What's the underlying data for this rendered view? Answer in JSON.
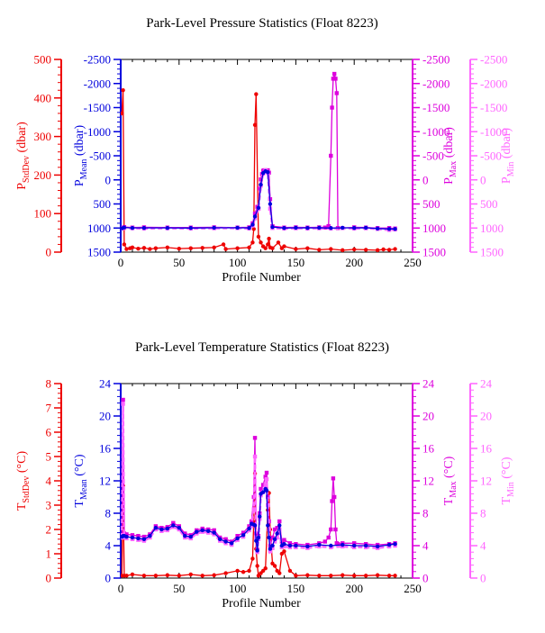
{
  "charts": [
    {
      "id": "pressure",
      "title": "Park-Level Pressure Statistics (Float 8223)",
      "xlabel": "Profile Number",
      "xticks": [
        "0",
        "50",
        "100",
        "150",
        "200",
        "250"
      ],
      "axes": [
        {
          "key": "sd",
          "label_main": "P",
          "label_sub": "StdDev",
          "label_unit": " (dbar)",
          "color": "#ee0000",
          "ticks": [
            "0",
            "100",
            "200",
            "300",
            "400",
            "500"
          ]
        },
        {
          "key": "mean",
          "label_main": "P",
          "label_sub": "Mean",
          "label_unit": " (dbar)",
          "color": "#0000dd",
          "ticks": [
            "1500",
            "1000",
            "500",
            "0",
            "-500",
            "-1000",
            "-1500",
            "-2000",
            "-2500"
          ]
        },
        {
          "key": "max",
          "label_main": "P",
          "label_sub": "Max",
          "label_unit": " (dbar)",
          "color": "#dd00dd",
          "ticks": [
            "1500",
            "1000",
            "500",
            "0",
            "-500",
            "-1000",
            "-1500",
            "-2000",
            "-2500"
          ]
        },
        {
          "key": "min",
          "label_main": "P",
          "label_sub": "Min",
          "label_unit": " (dbar)",
          "color": "#ff66ff",
          "ticks": [
            "1500",
            "1000",
            "500",
            "0",
            "-500",
            "-1000",
            "-1500",
            "-2000",
            "-2500"
          ]
        }
      ]
    },
    {
      "id": "temperature",
      "title": "Park-Level Temperature Statistics (Float 8223)",
      "xlabel": "Profile Number",
      "xticks": [
        "0",
        "50",
        "100",
        "150",
        "200",
        "250"
      ],
      "axes": [
        {
          "key": "sd",
          "label_main": "T",
          "label_sub": "StdDev",
          "label_unit": " (°C)",
          "color": "#ee0000",
          "ticks": [
            "0",
            "1",
            "2",
            "3",
            "4",
            "5",
            "6",
            "7",
            "8"
          ]
        },
        {
          "key": "mean",
          "label_main": "T",
          "label_sub": "Mean",
          "label_unit": " (°C)",
          "color": "#0000dd",
          "ticks": [
            "0",
            "4",
            "8",
            "12",
            "16",
            "20",
            "24"
          ]
        },
        {
          "key": "max",
          "label_main": "T",
          "label_sub": "Max",
          "label_unit": " (°C)",
          "color": "#dd00dd",
          "ticks": [
            "0",
            "4",
            "8",
            "12",
            "16",
            "20",
            "24"
          ]
        },
        {
          "key": "min",
          "label_main": "T",
          "label_sub": "Min",
          "label_unit": " (°C)",
          "color": "#ff66ff",
          "ticks": [
            "0",
            "4",
            "8",
            "12",
            "16",
            "20",
            "24"
          ]
        }
      ]
    }
  ],
  "chart_data": [
    {
      "type": "line",
      "title": "Park-Level Pressure Statistics (Float 8223)",
      "xlabel": "Profile Number",
      "xlim": [
        0,
        250
      ],
      "y_axes": {
        "sd": {
          "label": "PStdDev (dbar)",
          "ylim": [
            0,
            500
          ]
        },
        "mean": {
          "label": "PMean (dbar)",
          "ylim": [
            1500,
            -2500
          ]
        },
        "max": {
          "label": "PMax (dbar)",
          "ylim": [
            1500,
            -2500
          ]
        },
        "min": {
          "label": "PMin (dbar)",
          "ylim": [
            1500,
            -2500
          ]
        }
      },
      "series": [
        {
          "axis": "sd",
          "color": "#ee0000",
          "x": [
            1,
            2,
            3,
            5,
            8,
            10,
            15,
            20,
            25,
            30,
            40,
            50,
            60,
            70,
            80,
            88,
            90,
            100,
            110,
            113,
            114,
            115,
            116,
            118,
            120,
            122,
            124,
            126,
            127,
            128,
            130,
            135,
            138,
            140,
            150,
            160,
            170,
            180,
            190,
            200,
            210,
            220,
            225,
            230,
            235
          ],
          "y": [
            360,
            420,
            20,
            8,
            10,
            12,
            9,
            11,
            8,
            10,
            12,
            9,
            10,
            11,
            12,
            20,
            8,
            10,
            12,
            25,
            60,
            330,
            410,
            40,
            25,
            15,
            10,
            20,
            35,
            12,
            10,
            25,
            10,
            15,
            8,
            10,
            6,
            8,
            5,
            7,
            6,
            5,
            7,
            6,
            8
          ]
        },
        {
          "axis": "max",
          "color": "#dd00dd",
          "x": [
            1,
            3,
            10,
            20,
            40,
            60,
            80,
            100,
            110,
            113,
            115,
            117,
            118,
            119,
            120,
            121,
            122,
            123,
            125,
            126,
            127,
            128,
            130,
            140,
            150,
            160,
            170,
            175,
            178,
            180,
            181,
            182,
            183,
            184,
            185,
            186,
            190,
            200,
            210,
            220,
            230,
            235
          ],
          "y": [
            1000,
            980,
            990,
            985,
            990,
            990,
            985,
            990,
            985,
            900,
            700,
            560,
            600,
            180,
            -10,
            -120,
            -190,
            -200,
            -180,
            -200,
            -150,
            400,
            960,
            990,
            985,
            990,
            985,
            990,
            960,
            -500,
            -1500,
            -2100,
            -2200,
            -2100,
            -1800,
            1000,
            1000,
            985,
            990,
            1000,
            1000,
            1010
          ]
        },
        {
          "axis": "min",
          "color": "#ff66ff",
          "x": [
            1,
            3,
            10,
            20,
            40,
            60,
            80,
            100,
            110,
            113,
            115,
            118,
            120,
            122,
            124,
            126,
            128,
            130,
            140,
            150,
            160,
            170,
            180,
            190,
            200,
            210,
            220,
            230,
            235
          ],
          "y": [
            1010,
            1000,
            1005,
            1010,
            1005,
            1010,
            1005,
            1000,
            1010,
            950,
            800,
            600,
            120,
            -130,
            -200,
            -150,
            600,
            1000,
            1010,
            1005,
            1010,
            1005,
            1010,
            1000,
            1010,
            1005,
            1020,
            1040,
            1030
          ]
        },
        {
          "axis": "mean",
          "color": "#0000dd",
          "x": [
            1,
            3,
            10,
            20,
            40,
            60,
            80,
            100,
            110,
            113,
            115,
            118,
            120,
            122,
            124,
            126,
            128,
            130,
            140,
            150,
            160,
            170,
            180,
            190,
            200,
            210,
            220,
            230,
            235
          ],
          "y": [
            1005,
            990,
            998,
            998,
            998,
            1000,
            995,
            995,
            998,
            930,
            760,
            580,
            100,
            -140,
            -180,
            -160,
            500,
            980,
            1000,
            995,
            998,
            995,
            1000,
            995,
            998,
            995,
            1010,
            1020,
            1020
          ]
        }
      ]
    },
    {
      "type": "line",
      "title": "Park-Level Temperature Statistics (Float 8223)",
      "xlabel": "Profile Number",
      "xlim": [
        0,
        250
      ],
      "y_axes": {
        "sd": {
          "label": "TStdDev (°C)",
          "ylim": [
            0,
            8
          ]
        },
        "mean": {
          "label": "TMean (°C)",
          "ylim": [
            0,
            24
          ]
        },
        "max": {
          "label": "TMax (°C)",
          "ylim": [
            0,
            24
          ]
        },
        "min": {
          "label": "TMin (°C)",
          "ylim": [
            0,
            24
          ]
        }
      },
      "series": [
        {
          "axis": "sd",
          "color": "#ee0000",
          "x": [
            1,
            2,
            3,
            5,
            10,
            20,
            30,
            40,
            50,
            60,
            70,
            80,
            90,
            100,
            105,
            110,
            113,
            114,
            115,
            116,
            117,
            118,
            120,
            122,
            124,
            126,
            127,
            128,
            130,
            132,
            134,
            136,
            138,
            140,
            145,
            150,
            160,
            170,
            180,
            190,
            200,
            210,
            220,
            230,
            235
          ],
          "y": [
            0.1,
            3.8,
            0.1,
            0.1,
            0.15,
            0.1,
            0.1,
            0.12,
            0.1,
            0.15,
            0.1,
            0.12,
            0.2,
            0.3,
            0.25,
            0.3,
            0.8,
            2.3,
            4.3,
            1.2,
            0.5,
            0.1,
            0.2,
            0.3,
            0.4,
            2.8,
            3.5,
            2.0,
            0.6,
            0.5,
            0.3,
            0.2,
            1.0,
            1.1,
            0.3,
            0.1,
            0.12,
            0.1,
            0.1,
            0.12,
            0.1,
            0.1,
            0.12,
            0.1,
            0.1
          ]
        },
        {
          "axis": "max",
          "color": "#dd00dd",
          "x": [
            1,
            2,
            3,
            5,
            10,
            15,
            20,
            25,
            30,
            35,
            40,
            45,
            50,
            55,
            60,
            65,
            70,
            75,
            80,
            85,
            90,
            95,
            100,
            105,
            110,
            112,
            114,
            115,
            116,
            117,
            118,
            119,
            120,
            122,
            124,
            125,
            126,
            127,
            128,
            130,
            132,
            134,
            136,
            138,
            140,
            145,
            150,
            160,
            170,
            175,
            178,
            180,
            181,
            182,
            183,
            184,
            185,
            186,
            190,
            200,
            210,
            220,
            230,
            235
          ],
          "y": [
            5.2,
            22,
            5.5,
            5.4,
            5.3,
            5.2,
            5.1,
            5.4,
            6.4,
            6.2,
            6.3,
            6.8,
            6.4,
            5.5,
            5.3,
            5.9,
            6.1,
            6.0,
            5.9,
            5.0,
            4.8,
            4.5,
            5.2,
            5.6,
            6.4,
            7.0,
            10.0,
            17.3,
            5.5,
            3.5,
            5.2,
            8.0,
            11.0,
            11.5,
            12.5,
            13.0,
            10.0,
            7.0,
            4.0,
            5.0,
            6.0,
            6.2,
            7.0,
            4.5,
            4.7,
            4.3,
            4.2,
            4.1,
            4.3,
            4.5,
            5.0,
            6.0,
            9.5,
            12.3,
            10.0,
            6.0,
            4.3,
            4.2,
            4.3,
            4.3,
            4.2,
            4.1,
            4.2,
            4.3
          ]
        },
        {
          "axis": "min",
          "color": "#ff66ff",
          "x": [
            1,
            2,
            3,
            5,
            10,
            15,
            20,
            25,
            30,
            35,
            40,
            45,
            50,
            55,
            60,
            65,
            70,
            75,
            80,
            85,
            90,
            95,
            100,
            105,
            110,
            112,
            114,
            115,
            116,
            117,
            118,
            119,
            120,
            122,
            124,
            125,
            126,
            127,
            128,
            130,
            132,
            134,
            136,
            138,
            140,
            145,
            150,
            160,
            170,
            180,
            190,
            200,
            210,
            220,
            230,
            235
          ],
          "y": [
            5.0,
            21.5,
            5.0,
            4.9,
            4.8,
            4.7,
            4.6,
            5.0,
            6.0,
            5.8,
            5.9,
            6.3,
            6.0,
            5.0,
            4.9,
            5.5,
            5.7,
            5.6,
            5.4,
            4.6,
            4.3,
            4.1,
            4.7,
            5.1,
            5.9,
            6.4,
            8.5,
            15.0,
            5.0,
            3.2,
            4.8,
            7.3,
            10.2,
            10.6,
            11.5,
            12.2,
            9.0,
            6.0,
            3.3,
            3.7,
            4.5,
            5.0,
            6.0,
            3.8,
            3.9,
            3.8,
            3.8,
            3.7,
            3.9,
            3.8,
            3.9,
            3.8,
            3.8,
            3.7,
            3.9,
            4.0
          ]
        },
        {
          "axis": "mean",
          "color": "#0000dd",
          "x": [
            1,
            2,
            3,
            5,
            10,
            15,
            20,
            25,
            30,
            35,
            40,
            45,
            50,
            55,
            60,
            65,
            70,
            75,
            80,
            85,
            90,
            95,
            100,
            105,
            110,
            112,
            114,
            115,
            116,
            117,
            118,
            119,
            120,
            122,
            124,
            125,
            126,
            127,
            128,
            130,
            132,
            134,
            136,
            138,
            140,
            145,
            150,
            160,
            170,
            180,
            190,
            200,
            210,
            220,
            230,
            235
          ],
          "y": [
            5.1,
            5.2,
            5.2,
            5.1,
            5.0,
            4.9,
            4.8,
            5.2,
            6.2,
            6.0,
            6.1,
            6.5,
            6.2,
            5.2,
            5.1,
            5.7,
            5.9,
            5.8,
            5.6,
            4.8,
            4.5,
            4.3,
            4.9,
            5.3,
            6.1,
            6.7,
            6.6,
            6.5,
            4.6,
            3.4,
            5.0,
            7.6,
            10.4,
            10.6,
            11.0,
            10.8,
            6.5,
            5.0,
            3.6,
            4.0,
            4.8,
            5.5,
            6.5,
            4.0,
            4.2,
            4.0,
            4.0,
            3.9,
            4.1,
            4.0,
            4.1,
            4.0,
            4.0,
            3.9,
            4.1,
            4.2
          ]
        }
      ]
    }
  ]
}
